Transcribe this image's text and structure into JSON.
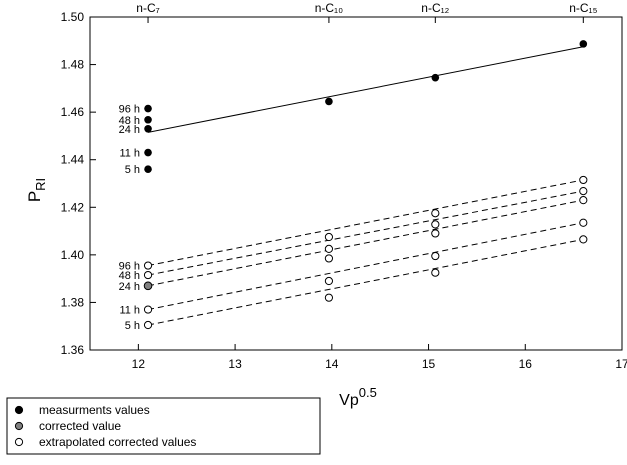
{
  "chart_data": {
    "type": "scatter",
    "xlabel": {
      "base": "Vp",
      "sup": "0.5"
    },
    "ylabel": {
      "base": "P",
      "sub": "RI"
    },
    "xlim": [
      11.5,
      17
    ],
    "ylim": [
      1.36,
      1.5
    ],
    "xticks": [
      12,
      13,
      14,
      15,
      16,
      17
    ],
    "yticks": [
      1.36,
      1.38,
      1.4,
      1.42,
      1.44,
      1.46,
      1.48,
      1.5
    ],
    "ytick_labels": [
      "1.36",
      "1.38",
      "1.40",
      "1.42",
      "1.44",
      "1.46",
      "1.48",
      "1.50"
    ],
    "top_axis": [
      {
        "label": "n-C₇",
        "x": 12.1
      },
      {
        "label": "n-C₁₀",
        "x": 13.97
      },
      {
        "label": "n-C₁₂",
        "x": 15.07
      },
      {
        "label": "n-C₁₅",
        "x": 16.6
      }
    ],
    "grid": false,
    "legend_position": "bottom-left",
    "legend": [
      {
        "label": "measurments values",
        "marker": "filled-black"
      },
      {
        "label": "corrected value",
        "marker": "filled-gray"
      },
      {
        "label": "extrapolated corrected values",
        "marker": "open"
      }
    ],
    "measured_alkanes": {
      "x": [
        13.97,
        15.07,
        16.6
      ],
      "y": [
        1.4645,
        1.4745,
        1.4887
      ]
    },
    "measured_line": {
      "x": [
        12.1,
        16.6
      ],
      "y": [
        1.4515,
        1.4875
      ]
    },
    "measured_series": [
      {
        "label": "96 h",
        "x": 12.1,
        "y": 1.4615
      },
      {
        "label": "48 h",
        "x": 12.1,
        "y": 1.4568
      },
      {
        "label": "24 h",
        "x": 12.1,
        "y": 1.453
      },
      {
        "label": "11 h",
        "x": 12.1,
        "y": 1.443
      },
      {
        "label": "5 h",
        "x": 12.1,
        "y": 1.436
      }
    ],
    "corrected_value": {
      "x": 12.1,
      "y": 1.387
    },
    "extrapolated_series": [
      {
        "label": "96 h",
        "x": [
          12.1,
          13.97,
          15.07,
          16.6
        ],
        "y": [
          1.3955,
          1.4075,
          1.4175,
          1.4315
        ]
      },
      {
        "label": "48 h",
        "x": [
          12.1,
          13.97,
          15.07,
          16.6
        ],
        "y": [
          1.3915,
          1.4025,
          1.4128,
          1.4268
        ]
      },
      {
        "label": "24 h",
        "x": [
          12.1,
          13.97,
          15.07,
          16.6
        ],
        "y": [
          1.387,
          1.3985,
          1.409,
          1.423
        ]
      },
      {
        "label": "11 h",
        "x": [
          12.1,
          13.97,
          15.07,
          16.6
        ],
        "y": [
          1.377,
          1.389,
          1.3995,
          1.4135
        ]
      },
      {
        "label": "5 h",
        "x": [
          12.1,
          13.97,
          15.07,
          16.6
        ],
        "y": [
          1.3705,
          1.382,
          1.3925,
          1.4065
        ]
      }
    ]
  }
}
